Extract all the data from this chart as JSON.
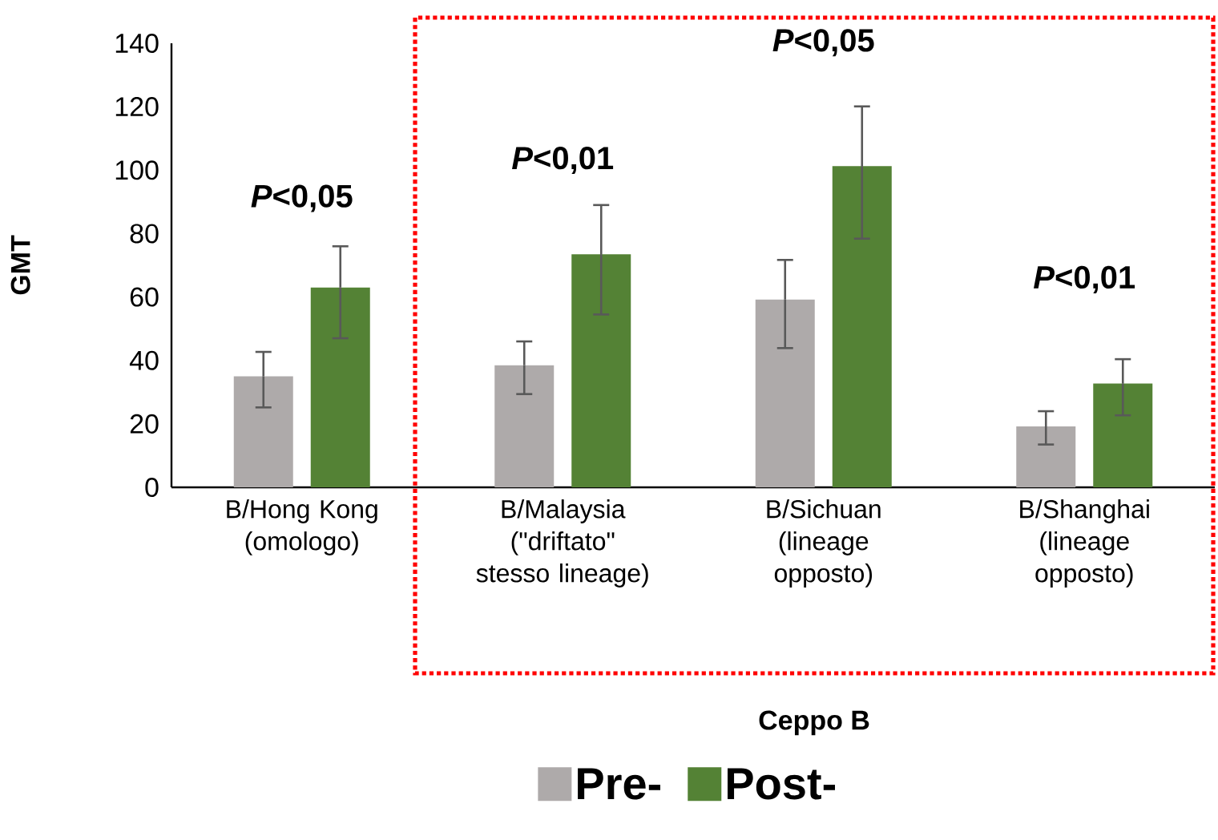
{
  "chart_data": {
    "type": "bar",
    "xlabel": "Ceppo B",
    "ylabel": "GMT",
    "categories": [
      "B/Hong Kong (omologo)",
      "B/Malaysia (\"driftato\" stesso lineage)",
      "B/Sichuan (lineage opposto)",
      "B/Shanghai (lineage opposto)"
    ],
    "series": [
      {
        "name": "Pre-",
        "color": "#aeaaaa",
        "values": [
          35,
          38.5,
          59.2,
          19.2
        ],
        "errors": [
          [
            25.2,
            42.7
          ],
          [
            29.4,
            46
          ],
          [
            43.9,
            71.7
          ],
          [
            13.5,
            24
          ]
        ]
      },
      {
        "name": "Post-",
        "color": "#548235",
        "values": [
          63,
          73.5,
          101.3,
          32.7
        ],
        "errors": [
          [
            47,
            76
          ],
          [
            54.5,
            89
          ],
          [
            78.4,
            120.1
          ],
          [
            22.7,
            40.4
          ]
        ]
      }
    ],
    "ylim": [
      0,
      140
    ],
    "yticks": [
      0,
      20,
      40,
      60,
      80,
      100,
      120,
      140
    ],
    "legend": "bottom",
    "annotations": [
      "*P*<0,05",
      "*P*<0,01",
      "*P*<0,05",
      "*P*<0,01"
    ]
  }
}
